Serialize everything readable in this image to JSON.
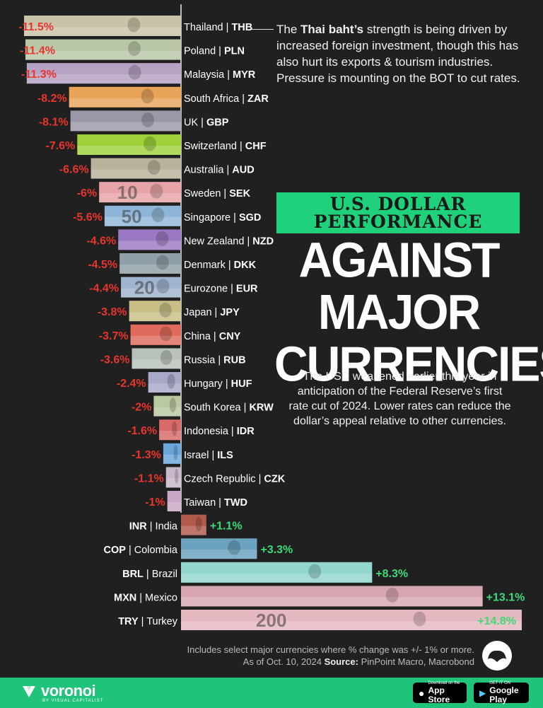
{
  "chart_data": {
    "type": "bar",
    "orientation": "horizontal",
    "title_banner": "U.S. DOLLAR PERFORMANCE",
    "title_main": "AGAINST MAJOR CURRENCIES",
    "negative_rows": [
      {
        "country": "Thailand",
        "code": "THB",
        "value": -11.5,
        "label": "-11.5%",
        "color": "#c9c3a8"
      },
      {
        "country": "Poland",
        "code": "PLN",
        "value": -11.4,
        "label": "-11.4%",
        "color": "#b9c7a6"
      },
      {
        "country": "Malaysia",
        "code": "MYR",
        "value": -11.3,
        "label": "-11.3%",
        "color": "#b6a2c2"
      },
      {
        "country": "South Africa",
        "code": "ZAR",
        "value": -8.2,
        "label": "-8.2%",
        "color": "#e9a45a"
      },
      {
        "country": "UK",
        "code": "GBP",
        "value": -8.1,
        "label": "-8.1%",
        "color": "#9b97a8"
      },
      {
        "country": "Switzerland",
        "code": "CHF",
        "value": -7.6,
        "label": "-7.6%",
        "color": "#9fd23a"
      },
      {
        "country": "Australia",
        "code": "AUD",
        "value": -6.6,
        "label": "-6.6%",
        "color": "#b7b39a"
      },
      {
        "country": "Sweden",
        "code": "SEK",
        "value": -6,
        "label": "-6%",
        "color": "#e7a3a7"
      },
      {
        "country": "Singapore",
        "code": "SGD",
        "value": -5.6,
        "label": "-5.6%",
        "color": "#8fb6d8"
      },
      {
        "country": "New Zealand",
        "code": "NZD",
        "value": -4.6,
        "label": "-4.6%",
        "color": "#9b78c4"
      },
      {
        "country": "Denmark",
        "code": "DKK",
        "value": -4.5,
        "label": "-4.5%",
        "color": "#8fa0a8"
      },
      {
        "country": "Eurozone",
        "code": "EUR",
        "value": -4.4,
        "label": "-4.4%",
        "color": "#9fb4cf"
      },
      {
        "country": "Japan",
        "code": "JPY",
        "value": -3.8,
        "label": "-3.8%",
        "color": "#c9bf86"
      },
      {
        "country": "China",
        "code": "CNY",
        "value": -3.7,
        "label": "-3.7%",
        "color": "#e06a5c"
      },
      {
        "country": "Russia",
        "code": "RUB",
        "value": -3.6,
        "label": "-3.6%",
        "color": "#b8c2b8"
      },
      {
        "country": "Hungary",
        "code": "HUF",
        "value": -2.4,
        "label": "-2.4%",
        "color": "#a7a9c9"
      },
      {
        "country": "South Korea",
        "code": "KRW",
        "value": -2,
        "label": "-2%",
        "color": "#b9c9a1"
      },
      {
        "country": "Indonesia",
        "code": "IDR",
        "value": -1.6,
        "label": "-1.6%",
        "color": "#d86a6a"
      },
      {
        "country": "Israel",
        "code": "ILS",
        "value": -1.3,
        "label": "-1.3%",
        "color": "#6aa6dc"
      },
      {
        "country": "Czech Republic",
        "code": "CZK",
        "value": -1.1,
        "label": "-1.1%",
        "color": "#c9b8c9"
      },
      {
        "country": "Taiwan",
        "code": "TWD",
        "value": -1,
        "label": "-1%",
        "color": "#c9a6c6"
      }
    ],
    "positive_rows": [
      {
        "country": "India",
        "code": "INR",
        "value": 1.1,
        "label": "+1.1%",
        "color": "#b05a4a"
      },
      {
        "country": "Colombia",
        "code": "COP",
        "value": 3.3,
        "label": "+3.3%",
        "color": "#6aa2c0"
      },
      {
        "country": "Brazil",
        "code": "BRL",
        "value": 8.3,
        "label": "+8.3%",
        "color": "#92d6cf"
      },
      {
        "country": "Mexico",
        "code": "MXN",
        "value": 13.1,
        "label": "+13.1%",
        "color": "#d8a6b0"
      },
      {
        "country": "Turkey",
        "code": "TRY",
        "value": 14.8,
        "label": "+14.8%",
        "color": "#e5b8c0"
      }
    ],
    "banknote_numerals": [
      {
        "row": "SEK",
        "text": "10"
      },
      {
        "row": "SGD",
        "text": "50"
      },
      {
        "row": "EUR",
        "text": "20"
      },
      {
        "row": "TRY",
        "text": "200"
      }
    ]
  },
  "annotation": {
    "pre": "The ",
    "bold": "Thai baht’s",
    "post": " strength is being driven by increased foreign investment, though this has also hurt its exports & tourism industries. Pressure is mounting on the BOT to cut rates."
  },
  "description": "The USD weakened earlier this year in anticipation of the Federal Reserve’s first rate cut of 2024. Lower rates can reduce the dollar’s appeal relative to other currencies.",
  "footer": {
    "note": "Includes select major currencies where % change was +/- 1% or more.",
    "date": "As of Oct. 10, 2024 ",
    "source_label": "Source:",
    "source": " PinPoint Macro, Macrobond"
  },
  "brand": {
    "name": "voronoi",
    "sub": "BY VISUAL CAPITALIST"
  },
  "stores": {
    "apple_small": "Download on the",
    "apple_big": "App Store",
    "google_small": "GET IT ON",
    "google_big": "Google Play"
  },
  "colors": {
    "negative": "#e8352e",
    "positive": "#3fd97a",
    "banner": "#1fd17a",
    "background": "#202020"
  }
}
